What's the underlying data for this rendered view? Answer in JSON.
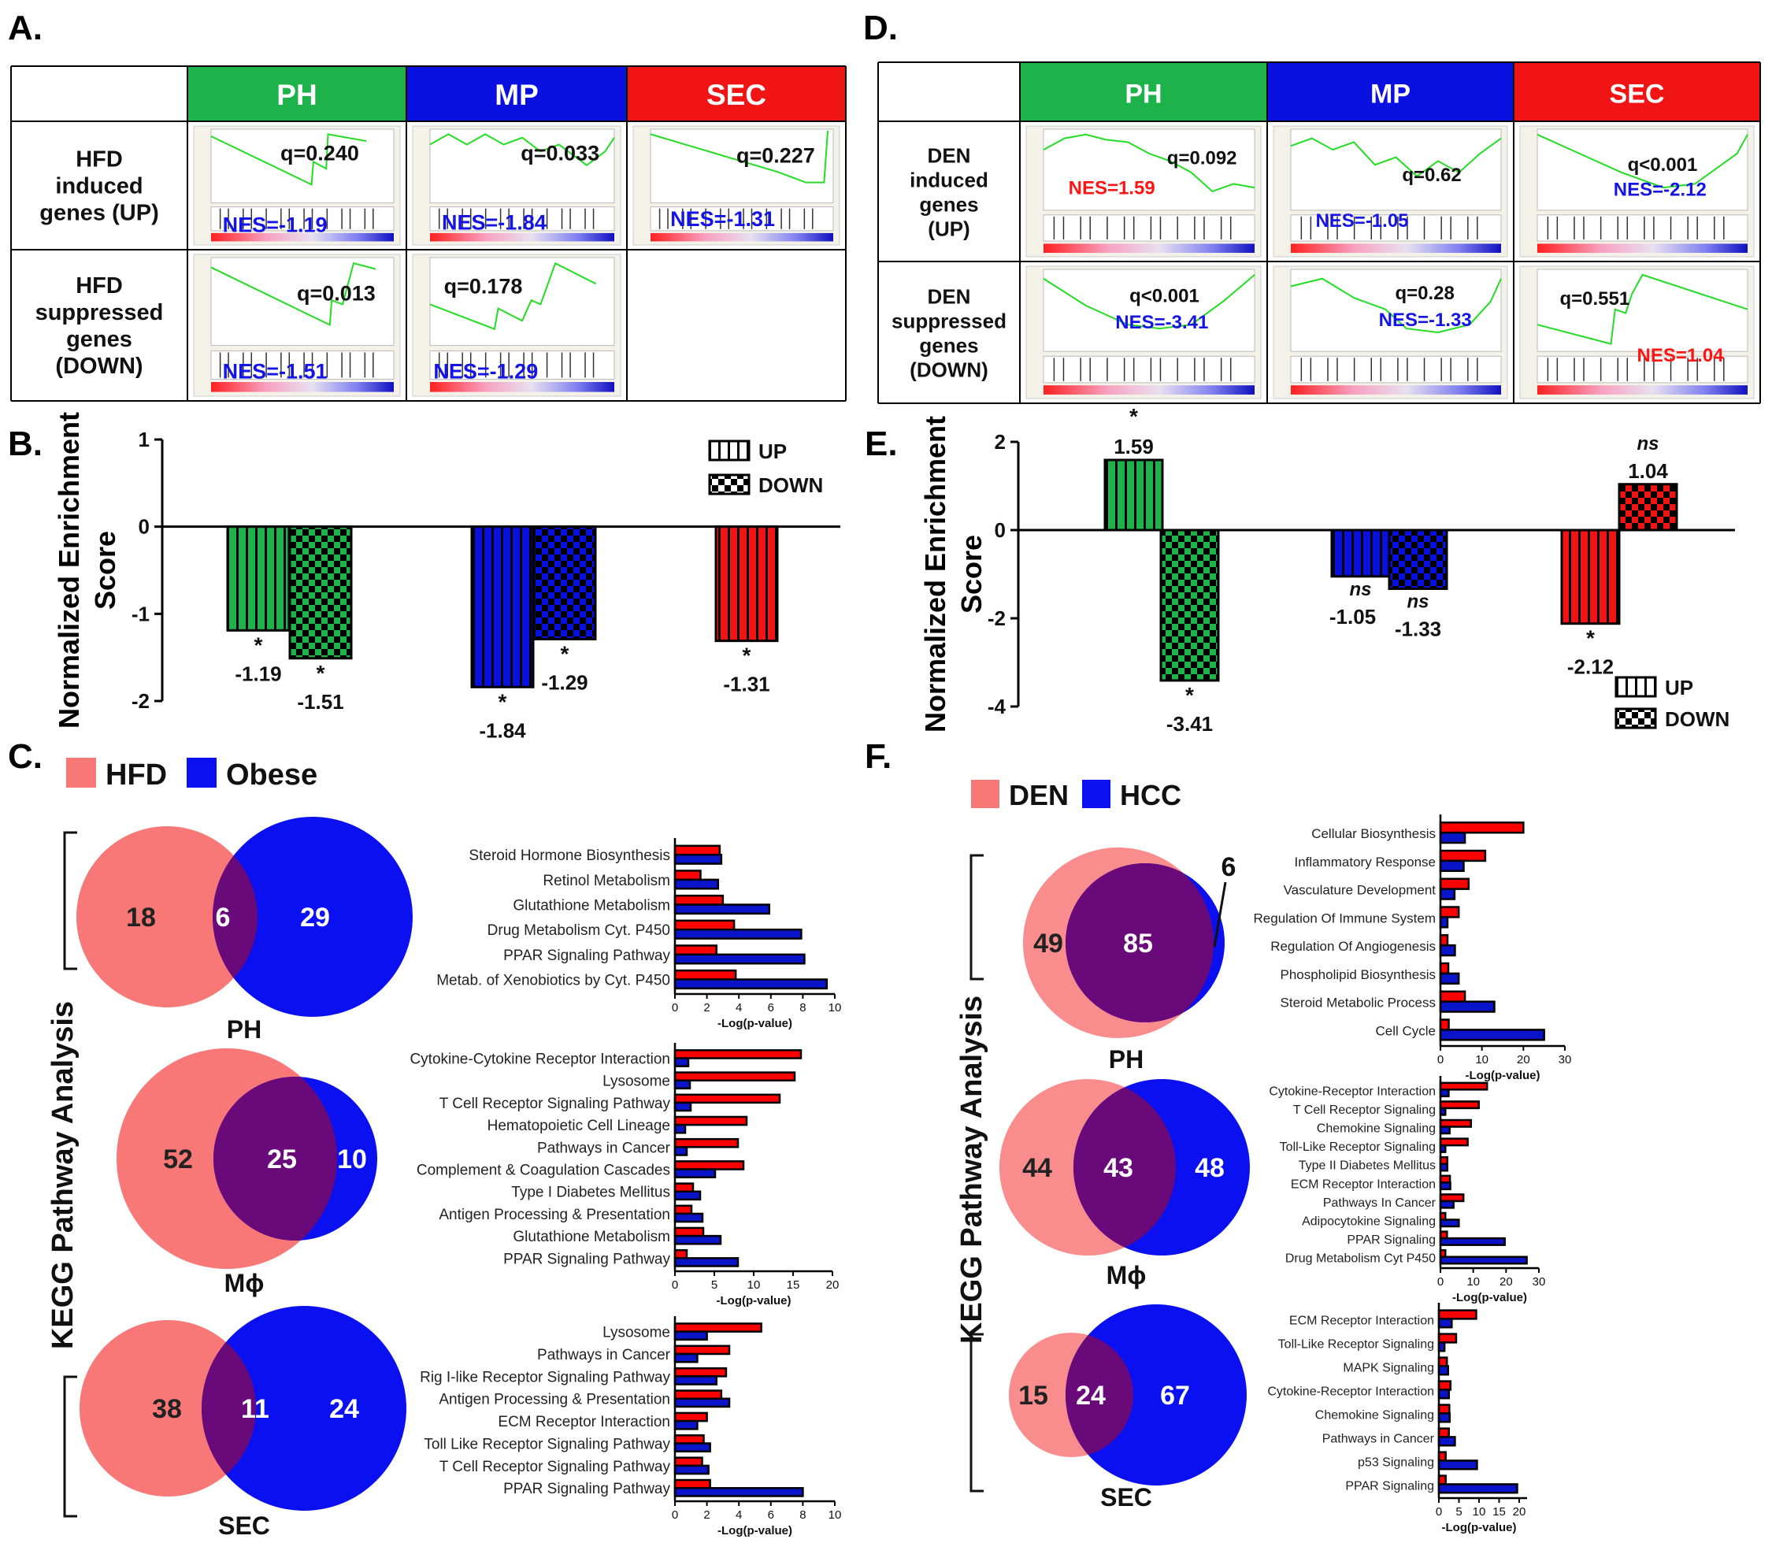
{
  "panel_letters": {
    "A": "A.",
    "B": "B.",
    "C": "C.",
    "D": "D.",
    "E": "E.",
    "F": "F."
  },
  "colors": {
    "PH": "#1db34a",
    "MP": "#0a10e0",
    "SEC": "#f01414",
    "hfd_den": "#f87878",
    "obese_hcc": "#0a10f0",
    "overlap": "#6a0a7a",
    "bar_red": "#ff0000",
    "bar_blue": "#0a14c8",
    "curve": "#22dd22"
  },
  "gsea_A": {
    "columns": [
      "PH",
      "MP",
      "SEC"
    ],
    "rows": [
      [
        "HFD",
        "induced",
        "genes (UP)"
      ],
      [
        "HFD",
        "suppressed",
        "genes",
        "(DOWN)"
      ]
    ],
    "cells": [
      {
        "q": "q=0.240",
        "nes": "NES=-1.19",
        "nes_color": "#1414e6"
      },
      {
        "q": "q=0.033",
        "nes": "NES=-1.84",
        "nes_color": "#1414e6"
      },
      {
        "q": "q=0.227",
        "nes": "NES=-1.31",
        "nes_color": "#1414e6"
      },
      {
        "q": "q=0.013",
        "nes": "NES=-1.51",
        "nes_color": "#1414e6"
      },
      {
        "q": "q=0.178",
        "nes": "NES=-1.29",
        "nes_color": "#1414e6"
      },
      null
    ]
  },
  "gsea_D": {
    "columns": [
      "PH",
      "MP",
      "SEC"
    ],
    "rows": [
      [
        "DEN",
        "induced",
        "genes",
        "(UP)"
      ],
      [
        "DEN",
        "suppressed",
        "genes",
        "(DOWN)"
      ]
    ],
    "cells": [
      {
        "q": "q=0.092",
        "nes": "NES=1.59",
        "nes_color": "#ff1414"
      },
      {
        "q": "q=0.62",
        "nes": "NES=-1.05",
        "nes_color": "#1414e6"
      },
      {
        "q": "q<0.001",
        "nes": "NES=-2.12",
        "nes_color": "#1414e6"
      },
      {
        "q": "q<0.001",
        "nes": "NES=-3.41",
        "nes_color": "#1414e6"
      },
      {
        "q": "q=0.28",
        "nes": "NES=-1.33",
        "nes_color": "#1414e6"
      },
      {
        "q": "q=0.551",
        "nes": "NES=1.04",
        "nes_color": "#ff1414"
      }
    ]
  },
  "venn": {
    "C": {
      "legend": [
        "HFD",
        "Obese"
      ],
      "label": "KEGG Pathway  Analysis",
      "sets": [
        {
          "name": "PH",
          "only_a": "18",
          "both": "6",
          "only_b": "29"
        },
        {
          "name": "Mϕ",
          "only_a": "52",
          "both": "25",
          "only_b": "10"
        },
        {
          "name": "SEC",
          "only_a": "38",
          "both": "11",
          "only_b": "24"
        }
      ]
    },
    "F": {
      "legend": [
        "DEN",
        "HCC"
      ],
      "label": "KEGG Pathway  Analysis",
      "sets": [
        {
          "name": "PH",
          "only_a": "49",
          "both": "85",
          "only_b": "6"
        },
        {
          "name": "Mϕ",
          "only_a": "44",
          "both": "43",
          "only_b": "48"
        },
        {
          "name": "SEC",
          "only_a": "15",
          "both": "24",
          "only_b": "67"
        }
      ]
    }
  },
  "chart_data": [
    {
      "id": "B",
      "type": "bar",
      "ylabel": [
        "Normalized Enrichment",
        "Score"
      ],
      "ylim": [
        -2,
        1
      ],
      "yticks": [
        1,
        0,
        -1,
        -2
      ],
      "categories": [
        "PH",
        "MP",
        "SEC"
      ],
      "series": [
        {
          "name": "UP",
          "pattern": "vertical-stripes",
          "values": [
            -1.19,
            -1.84,
            -1.31
          ],
          "labels": [
            "-1.19",
            "-1.84",
            "-1.31"
          ],
          "sig": [
            "*",
            "*",
            "*"
          ]
        },
        {
          "name": "DOWN",
          "pattern": "checkerboard",
          "values": [
            -1.51,
            -1.29,
            null
          ],
          "labels": [
            "-1.51",
            "-1.29",
            ""
          ],
          "sig": [
            "*",
            "*",
            ""
          ]
        }
      ],
      "legend": "top-right"
    },
    {
      "id": "E",
      "type": "bar",
      "ylabel": [
        "Normalized Enrichment",
        "Score"
      ],
      "ylim": [
        -4,
        2
      ],
      "yticks": [
        2,
        0,
        -2,
        -4
      ],
      "categories": [
        "PH",
        "MP",
        "SEC"
      ],
      "series": [
        {
          "name": "UP",
          "pattern": "vertical-stripes",
          "values": [
            1.59,
            -1.05,
            -2.12
          ],
          "labels": [
            "1.59",
            "-1.05",
            "-2.12"
          ],
          "sig": [
            "*",
            "ns",
            "*"
          ]
        },
        {
          "name": "DOWN",
          "pattern": "checkerboard",
          "values": [
            -3.41,
            -1.33,
            1.04
          ],
          "labels": [
            "-3.41",
            "-1.33",
            "1.04"
          ],
          "sig": [
            "*",
            "ns",
            "ns"
          ]
        }
      ],
      "legend": "bottom-right"
    },
    {
      "id": "C1",
      "type": "bar",
      "orientation": "horizontal",
      "xlabel": "-Log(p-value)",
      "xlim": [
        0,
        10
      ],
      "xticks": [
        0,
        2,
        4,
        6,
        8,
        10
      ],
      "categories": [
        "Steroid Hormone Biosynthesis",
        "Retinol Metabolism",
        "Glutathione Metabolism",
        "Drug Metabolism Cyt. P450",
        "PPAR Signaling Pathway",
        "Metab. of Xenobiotics by Cyt. P450"
      ],
      "series": [
        {
          "name": "HFD",
          "values": [
            2.8,
            1.6,
            3.0,
            3.7,
            2.6,
            3.8
          ]
        },
        {
          "name": "Obese",
          "values": [
            2.9,
            2.7,
            5.9,
            7.9,
            8.1,
            9.5
          ]
        }
      ]
    },
    {
      "id": "C2",
      "type": "bar",
      "orientation": "horizontal",
      "xlabel": "-Log(p-value)",
      "xlim": [
        0,
        20
      ],
      "xticks": [
        0,
        5,
        10,
        15,
        20
      ],
      "categories": [
        "Cytokine-Cytokine Receptor Interaction",
        "Lysosome",
        "T Cell Receptor  Signaling Pathway",
        "Hematopoietic Cell Lineage",
        "Pathways in Cancer",
        "Complement & Coagulation Cascades",
        "Type I Diabetes Mellitus",
        "Antigen Processing & Presentation",
        "Glutathione Metabolism",
        "PPAR Signaling Pathway"
      ],
      "series": [
        {
          "name": "HFD",
          "values": [
            16,
            15.2,
            13.3,
            9.1,
            8,
            8.7,
            2.3,
            2.1,
            3.6,
            1.5
          ]
        },
        {
          "name": "Obese",
          "values": [
            1.7,
            1.9,
            2.0,
            1.3,
            1.5,
            5.1,
            3.2,
            3.5,
            5.8,
            8.0
          ]
        }
      ]
    },
    {
      "id": "C3",
      "type": "bar",
      "orientation": "horizontal",
      "xlabel": "-Log(p-value)",
      "xlim": [
        0,
        10
      ],
      "xticks": [
        0,
        2,
        4,
        6,
        8,
        10
      ],
      "categories": [
        "Lysosome",
        "Pathways  in Cancer",
        "Rig I-like Receptor  Signaling Pathway",
        "Antigen Processing & Presentation",
        "ECM Receptor Interaction",
        "Toll Like Receptor Signaling Pathway",
        "T Cell Receptor Signaling Pathway",
        "PPAR Signaling Pathway"
      ],
      "series": [
        {
          "name": "HFD",
          "values": [
            5.4,
            3.4,
            3.2,
            2.9,
            2.0,
            1.8,
            1.7,
            2.2
          ]
        },
        {
          "name": "Obese",
          "values": [
            2.0,
            1.4,
            2.6,
            3.4,
            1.4,
            2.2,
            2.1,
            8.0
          ]
        }
      ]
    },
    {
      "id": "F1",
      "type": "bar",
      "orientation": "horizontal",
      "xlabel": "-Log(p-value)",
      "xlim": [
        0,
        30
      ],
      "xticks": [
        0,
        10,
        20,
        30
      ],
      "categories": [
        "Cellular Biosynthesis",
        "Inflammatory Response",
        "Vasculature Development",
        "Regulation Of Immune System",
        "Regulation Of Angiogenesis",
        "Phospholipid Biosynthesis",
        "Steroid Metabolic Process",
        "Cell Cycle"
      ],
      "series": [
        {
          "name": "DEN",
          "values": [
            20,
            10.8,
            6.8,
            4.4,
            1.7,
            1.9,
            5.9,
            2.0
          ]
        },
        {
          "name": "HCC",
          "values": [
            5.9,
            5.6,
            3.4,
            1.7,
            3.5,
            4.4,
            13,
            25
          ]
        }
      ]
    },
    {
      "id": "F2",
      "type": "bar",
      "orientation": "horizontal",
      "xlabel": "-Log(p-value)",
      "xlim": [
        0,
        30
      ],
      "xticks": [
        0,
        10,
        20,
        30
      ],
      "categories": [
        "Cytokine-Receptor Interaction",
        "T Cell Receptor Signaling",
        "Chemokine Signaling",
        "Toll-Like Receptor Signaling",
        "Type II Diabetes Mellitus",
        "ECM Receptor Interaction",
        "Pathways In Cancer",
        "Adipocytokine Signaling",
        "PPAR Signaling",
        "Drug Metabolism Cyt P450"
      ],
      "series": [
        {
          "name": "DEN",
          "values": [
            14.2,
            11.7,
            9.3,
            8.3,
            2.1,
            2.9,
            7.0,
            1.5,
            2.0,
            1.5
          ]
        },
        {
          "name": "HCC",
          "values": [
            2.5,
            1.5,
            2.8,
            1.5,
            2.1,
            3.0,
            4.0,
            5.6,
            19.6,
            26.3
          ]
        }
      ]
    },
    {
      "id": "F3",
      "type": "bar",
      "orientation": "horizontal",
      "xlabel": "-Log(p-value)",
      "xlim": [
        0,
        20
      ],
      "xticks": [
        0,
        5,
        10,
        15,
        20
      ],
      "categories": [
        "ECM Receptor Interaction",
        "Toll-Like Receptor Signaling",
        "MAPK Signaling",
        "Cytokine-Receptor Interaction",
        "Chemokine Signaling",
        "Pathways in Cancer",
        "p53 Signaling",
        "PPAR Signaling"
      ],
      "series": [
        {
          "name": "DEN",
          "values": [
            9.3,
            4.3,
            2.0,
            2.9,
            2.6,
            2.5,
            1.7,
            1.7
          ]
        },
        {
          "name": "HCC",
          "values": [
            3.2,
            1.4,
            2.3,
            2.5,
            2.7,
            4.0,
            9.5,
            19.5
          ]
        }
      ]
    }
  ]
}
